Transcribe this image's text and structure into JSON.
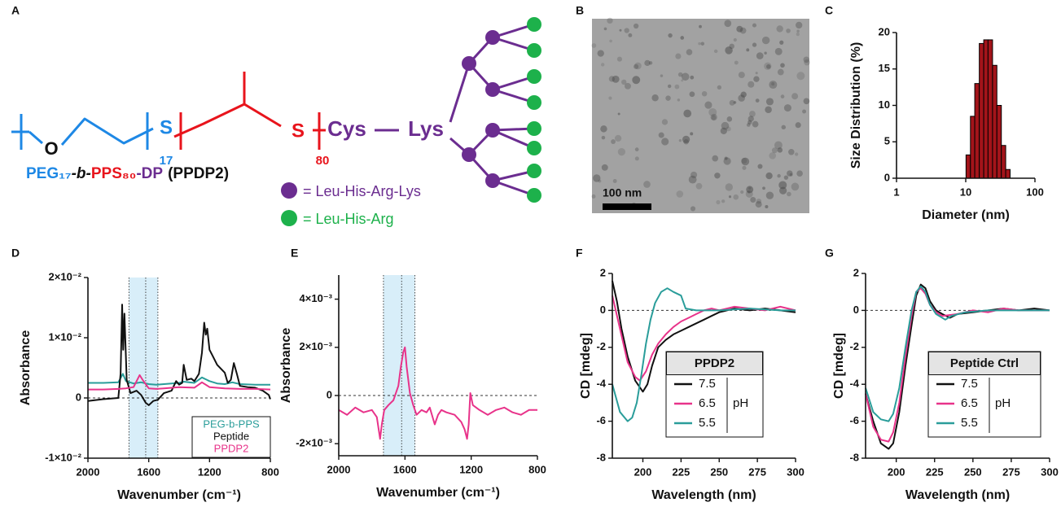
{
  "structure": {
    "panel": "A",
    "atoms": [
      "O",
      "S",
      "S"
    ],
    "subscripts": [
      "17",
      "80"
    ],
    "residues": [
      "Cys",
      "Lys"
    ],
    "name": [
      "PEG₁₇",
      "-b-",
      "PPS₈₀",
      "-DP",
      "(PPDP2)"
    ],
    "key": [
      "= Leu-His-Arg-Lys",
      "= Leu-His-Arg"
    ]
  },
  "image": {
    "panel": "B",
    "scale_bar": "100 nm"
  },
  "chart_data": [
    {
      "panel": "C",
      "type": "histogram",
      "xlabel": "Diameter (nm)",
      "ylabel": "Size Distribution (%)",
      "color": "#a3141a",
      "bins": [
        10.1,
        11.7,
        13.5,
        15.7,
        18.2,
        21.0,
        24.4,
        28.2,
        32.7,
        37.8,
        43.8
      ],
      "values": [
        3.2,
        8.5,
        13,
        18.5,
        19,
        19,
        15.5,
        10,
        4.5,
        1.2
      ],
      "xscale": "log",
      "xlim": [
        1,
        100
      ],
      "xticks": [
        1,
        10,
        100
      ],
      "ylim": [
        0,
        20
      ],
      "yticks": [
        0,
        5,
        10,
        15,
        20
      ]
    },
    {
      "panel": "D",
      "type": "line",
      "xlabel": "Wavenumber (cm⁻¹)",
      "ylabel": "Absorbance",
      "xlim": [
        2000,
        800
      ],
      "xticks": [
        2000,
        1600,
        1200,
        800
      ],
      "ylim": [
        -0.01,
        0.02
      ],
      "yticks": [
        {
          "value": -0.01,
          "label": "-1×10⁻²"
        },
        0,
        {
          "value": 0.01,
          "label": "1×10⁻²"
        },
        {
          "value": 0.02,
          "label": "2×10⁻²"
        }
      ],
      "band": [
        1730,
        1540
      ],
      "band_center": 1620,
      "hline": 0,
      "legend": "lower right",
      "series": [
        {
          "name": "PEG-b-PPS",
          "color": "#2a9d9a",
          "x": [
            2000,
            1900,
            1800,
            1770,
            1750,
            1700,
            1650,
            1600,
            1550,
            1500,
            1450,
            1400,
            1370,
            1300,
            1250,
            1200,
            1150,
            1100,
            1050,
            1000,
            900,
            800
          ],
          "values": [
            0.0025,
            0.0025,
            0.0026,
            0.004,
            0.0028,
            0.0024,
            0.0026,
            0.0023,
            0.0022,
            0.0023,
            0.0024,
            0.0025,
            0.0027,
            0.0025,
            0.0034,
            0.0028,
            0.0024,
            0.0023,
            0.0026,
            0.0023,
            0.0022,
            0.0022
          ]
        },
        {
          "name": "Peptide",
          "color": "#111111",
          "x": [
            2000,
            1900,
            1800,
            1785,
            1775,
            1768,
            1760,
            1745,
            1720,
            1680,
            1650,
            1620,
            1600,
            1570,
            1540,
            1500,
            1450,
            1420,
            1400,
            1380,
            1370,
            1350,
            1320,
            1300,
            1270,
            1250,
            1235,
            1225,
            1215,
            1200,
            1180,
            1150,
            1100,
            1080,
            1060,
            1040,
            1020,
            1000,
            950,
            900,
            850,
            810,
            800
          ],
          "values": [
            -0.0005,
            -0.0002,
            0.0,
            0.004,
            0.0155,
            0.008,
            0.014,
            0.003,
            0.0008,
            0.0012,
            0.0005,
            -0.0008,
            -0.0012,
            -0.0005,
            -0.0003,
            0.0008,
            0.0012,
            0.0028,
            0.0022,
            0.0025,
            0.0055,
            0.003,
            0.0032,
            0.0028,
            0.004,
            0.0075,
            0.0125,
            0.0105,
            0.0115,
            0.008,
            0.007,
            0.0055,
            0.0042,
            0.0025,
            0.003,
            0.0058,
            0.004,
            0.002,
            0.0018,
            0.0017,
            0.0012,
            0.0005,
            -0.0002
          ]
        },
        {
          "name": "PPDP2",
          "color": "#e8338a",
          "x": [
            2000,
            1900,
            1800,
            1750,
            1700,
            1660,
            1640,
            1600,
            1550,
            1500,
            1400,
            1300,
            1250,
            1200,
            1100,
            1000,
            900,
            800
          ],
          "values": [
            0.0014,
            0.0014,
            0.0015,
            0.0016,
            0.0018,
            0.0038,
            0.003,
            0.0016,
            0.0015,
            0.0016,
            0.0018,
            0.0017,
            0.0026,
            0.0018,
            0.0016,
            0.0015,
            0.0015,
            0.0014
          ]
        }
      ]
    },
    {
      "panel": "E",
      "type": "line",
      "xlabel": "Wavenumber (cm⁻¹)",
      "ylabel": "Absorbance",
      "color": "#e8338a",
      "xlim": [
        2000,
        800
      ],
      "xticks": [
        2000,
        1600,
        1200,
        800
      ],
      "ylim": [
        -0.0025,
        0.005
      ],
      "yticks": [
        {
          "value": -0.002,
          "label": "-2×10⁻³"
        },
        0,
        {
          "value": 0.002,
          "label": "2×10⁻³"
        },
        {
          "value": 0.004,
          "label": "4×10⁻³"
        }
      ],
      "band": [
        1730,
        1540
      ],
      "band_center": 1620,
      "hline": 0,
      "x": [
        2000,
        1950,
        1900,
        1850,
        1800,
        1770,
        1750,
        1740,
        1725,
        1700,
        1670,
        1640,
        1625,
        1610,
        1600,
        1590,
        1570,
        1550,
        1530,
        1500,
        1470,
        1450,
        1420,
        1400,
        1380,
        1350,
        1300,
        1260,
        1240,
        1225,
        1215,
        1205,
        1190,
        1150,
        1100,
        1050,
        1000,
        950,
        900,
        850,
        800
      ],
      "values": [
        -0.0006,
        -0.0008,
        -0.0005,
        -0.0007,
        -0.0006,
        -0.0009,
        -0.0018,
        -0.0012,
        -0.0006,
        -0.0004,
        -0.0002,
        0.0004,
        0.0012,
        0.0018,
        0.002,
        0.0012,
        0.0001,
        -0.0004,
        -0.0008,
        -0.0006,
        -0.0007,
        -0.0005,
        -0.0012,
        -0.0008,
        -0.0006,
        -0.0007,
        -0.0008,
        -0.0011,
        -0.0014,
        -0.0018,
        -0.0012,
        0.0001,
        -0.0004,
        -0.0006,
        -0.0008,
        -0.0006,
        -0.0005,
        -0.0007,
        -0.0008,
        -0.0006,
        -0.0006
      ]
    },
    {
      "panel": "F",
      "type": "line",
      "xlabel": "Wavelength (nm)",
      "ylabel": "CD [mdeg]",
      "xlim": [
        180,
        300
      ],
      "xticks": [
        200,
        225,
        250,
        275,
        300
      ],
      "ylim": [
        -8,
        2
      ],
      "yticks": [
        -8,
        -6,
        -4,
        -2,
        0,
        2
      ],
      "hline": 0,
      "legend": "lower right",
      "legend_title": "PPDP2",
      "legend_group": "pH",
      "series": [
        {
          "name": "7.5",
          "color": "#111111",
          "x": [
            180,
            183,
            186,
            190,
            195,
            200,
            203,
            206,
            210,
            215,
            220,
            225,
            230,
            235,
            240,
            245,
            250,
            255,
            260,
            270,
            280,
            290,
            300
          ],
          "values": [
            1.6,
            0.5,
            -1,
            -2.5,
            -3.8,
            -4.4,
            -4.0,
            -3.0,
            -2.0,
            -1.6,
            -1.3,
            -1.1,
            -0.9,
            -0.7,
            -0.5,
            -0.3,
            -0.1,
            0.0,
            0.1,
            0.0,
            0.1,
            0.0,
            -0.1
          ]
        },
        {
          "name": "6.5",
          "color": "#e8338a",
          "x": [
            180,
            185,
            190,
            195,
            198,
            202,
            206,
            210,
            215,
            220,
            225,
            230,
            235,
            240,
            245,
            250,
            260,
            270,
            280,
            290,
            300
          ],
          "values": [
            0.8,
            -1,
            -2.8,
            -3.6,
            -3.8,
            -3.3,
            -2.4,
            -1.8,
            -1.3,
            -0.9,
            -0.6,
            -0.4,
            -0.2,
            0.0,
            0.1,
            0.0,
            0.2,
            0.1,
            0.0,
            0.2,
            0.0
          ]
        },
        {
          "name": "5.5",
          "color": "#2a9d9a",
          "x": [
            180,
            185,
            190,
            193,
            196,
            199,
            202,
            205,
            208,
            212,
            216,
            220,
            225,
            228,
            235,
            250,
            270,
            290,
            300
          ],
          "values": [
            -4,
            -5.5,
            -6,
            -5.8,
            -5,
            -3.5,
            -1.8,
            -0.5,
            0.4,
            1.0,
            1.2,
            1.0,
            0.8,
            0.1,
            0.0,
            0.0,
            0.1,
            0.0,
            0.0
          ]
        }
      ]
    },
    {
      "panel": "G",
      "type": "line",
      "xlabel": "Wavelength (nm)",
      "ylabel": "CD [mdeg]",
      "xlim": [
        180,
        300
      ],
      "xticks": [
        200,
        225,
        250,
        275,
        300
      ],
      "ylim": [
        -8,
        2
      ],
      "yticks": [
        -8,
        -6,
        -4,
        -2,
        0,
        2
      ],
      "hline": 0,
      "legend": "lower right",
      "legend_title": "Peptide Ctrl",
      "legend_group": "pH",
      "series": [
        {
          "name": "7.5",
          "color": "#111111",
          "x": [
            180,
            185,
            190,
            195,
            198,
            202,
            206,
            210,
            213,
            216,
            219,
            222,
            226,
            230,
            235,
            240,
            250,
            260,
            270,
            280,
            290,
            300
          ],
          "values": [
            -4.5,
            -6,
            -7.2,
            -7.5,
            -7.2,
            -5.5,
            -3,
            -0.8,
            0.8,
            1.4,
            1.2,
            0.5,
            0.0,
            -0.2,
            -0.4,
            -0.2,
            -0.1,
            0.0,
            0.1,
            0.0,
            0.1,
            0.0
          ]
        },
        {
          "name": "6.5",
          "color": "#e8338a",
          "x": [
            180,
            185,
            190,
            195,
            198,
            202,
            206,
            210,
            213,
            216,
            219,
            222,
            226,
            230,
            240,
            250,
            260,
            270,
            280,
            300
          ],
          "values": [
            -4.5,
            -6.3,
            -7.0,
            -7.1,
            -6.6,
            -5,
            -2.5,
            -0.3,
            1.0,
            1.2,
            0.9,
            0.3,
            -0.1,
            -0.3,
            -0.2,
            0.0,
            -0.1,
            0.1,
            0.0,
            0.0
          ]
        },
        {
          "name": "5.5",
          "color": "#2a9d9a",
          "x": [
            180,
            185,
            190,
            195,
            198,
            202,
            206,
            210,
            213,
            216,
            219,
            222,
            226,
            232,
            236,
            245,
            260,
            280,
            300
          ],
          "values": [
            -4.2,
            -5.5,
            -5.9,
            -6.0,
            -5.6,
            -4.2,
            -2.0,
            0.0,
            1.0,
            1.3,
            1.0,
            0.3,
            -0.2,
            -0.5,
            -0.3,
            -0.1,
            0.0,
            0.0,
            0.0
          ]
        }
      ]
    }
  ]
}
